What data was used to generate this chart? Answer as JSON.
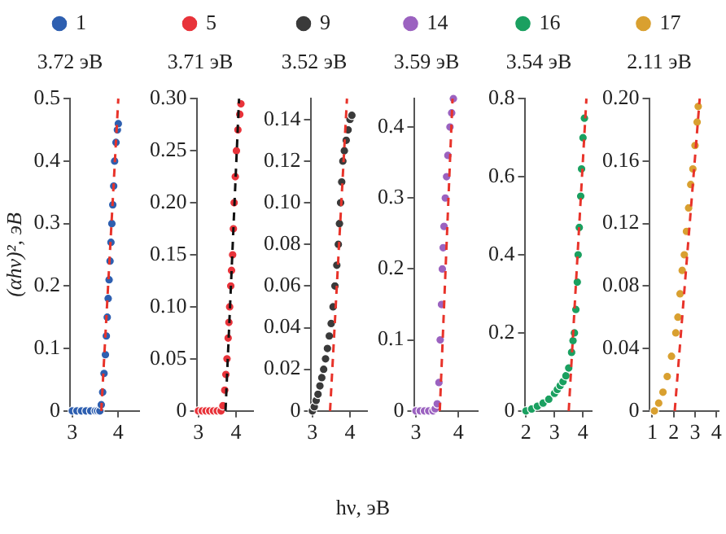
{
  "chart_data": [
    {
      "type": "scatter",
      "ylabel": "(αhν)², эВ",
      "annotations": [
        "3.72 эВ"
      ],
      "legend": "top",
      "marker": "circle",
      "grid": false,
      "xlim": [
        2.95,
        4.45
      ],
      "xticks": [
        3,
        4
      ],
      "ylim": [
        0,
        0.5
      ],
      "yticks": [
        0,
        0.1,
        0.2,
        0.3,
        0.4,
        0.5
      ],
      "series": [
        {
          "name": "1",
          "color": "#2e5fb0",
          "x": [
            3.0,
            3.1,
            3.2,
            3.3,
            3.4,
            3.5,
            3.55,
            3.6,
            3.63,
            3.66,
            3.69,
            3.72,
            3.74,
            3.76,
            3.78,
            3.8,
            3.82,
            3.84,
            3.86,
            3.88,
            3.9,
            3.92,
            3.95,
            3.98,
            4.0
          ],
          "values": [
            0,
            0,
            0,
            0,
            0,
            0,
            0,
            0,
            0.01,
            0.03,
            0.06,
            0.09,
            0.12,
            0.15,
            0.18,
            0.21,
            0.24,
            0.27,
            0.3,
            0.33,
            0.36,
            0.4,
            0.43,
            0.45,
            0.46
          ]
        },
        {
          "type": "line",
          "color": "#e8332a",
          "line_style": "dashed",
          "marker": "none",
          "x": [
            3.63,
            4.0
          ],
          "values": [
            0,
            0.5
          ]
        }
      ]
    },
    {
      "type": "scatter",
      "annotations": [
        "3.71 эВ"
      ],
      "legend": "top",
      "marker": "circle",
      "grid": false,
      "xlim": [
        2.95,
        4.45
      ],
      "xticks": [
        3,
        4
      ],
      "ylim": [
        0,
        0.3
      ],
      "yticks": [
        0,
        0.05,
        {
          "value": 0.1,
          "label": "0.10"
        },
        0.15,
        {
          "value": 0.2,
          "label": "0.20"
        },
        0.25,
        {
          "value": 0.3,
          "label": "0.30"
        }
      ],
      "series": [
        {
          "name": "5",
          "color": "#e8333a",
          "x": [
            3.0,
            3.1,
            3.2,
            3.3,
            3.4,
            3.5,
            3.6,
            3.65,
            3.7,
            3.73,
            3.76,
            3.79,
            3.81,
            3.83,
            3.86,
            3.88,
            3.91,
            3.93,
            3.95,
            3.98,
            4.01,
            4.05,
            4.1,
            4.13
          ],
          "values": [
            0,
            0,
            0,
            0,
            0,
            0,
            0,
            0.005,
            0.02,
            0.035,
            0.05,
            0.07,
            0.085,
            0.1,
            0.12,
            0.135,
            0.15,
            0.175,
            0.2,
            0.225,
            0.25,
            0.27,
            0.285,
            0.295
          ]
        },
        {
          "type": "line",
          "color": "#111111",
          "line_style": "dashed",
          "marker": "none",
          "x": [
            3.72,
            4.08
          ],
          "values": [
            0,
            0.3
          ]
        }
      ]
    },
    {
      "type": "scatter",
      "annotations": [
        "3.52 эВ"
      ],
      "legend": "top",
      "marker": "circle",
      "grid": false,
      "xlim": [
        2.95,
        4.45
      ],
      "xticks": [
        3,
        4
      ],
      "ylim": [
        0,
        0.15
      ],
      "yticks": [
        0,
        0.02,
        0.04,
        0.06,
        0.08,
        {
          "value": 0.1,
          "label": "0.10"
        },
        0.12,
        0.14
      ],
      "series": [
        {
          "name": "9",
          "color": "#3a3a3a",
          "x": [
            3.0,
            3.05,
            3.1,
            3.15,
            3.2,
            3.25,
            3.3,
            3.35,
            3.4,
            3.45,
            3.5,
            3.55,
            3.6,
            3.65,
            3.69,
            3.72,
            3.75,
            3.78,
            3.81,
            3.85,
            3.9,
            3.95,
            4.0,
            4.05
          ],
          "values": [
            0,
            0.002,
            0.005,
            0.008,
            0.012,
            0.016,
            0.02,
            0.025,
            0.03,
            0.036,
            0.042,
            0.05,
            0.06,
            0.07,
            0.08,
            0.09,
            0.1,
            0.11,
            0.12,
            0.125,
            0.13,
            0.135,
            0.14,
            0.142
          ]
        },
        {
          "type": "line",
          "color": "#e8332a",
          "line_style": "dashed",
          "marker": "none",
          "x": [
            3.47,
            3.92
          ],
          "values": [
            0,
            0.15
          ]
        }
      ]
    },
    {
      "type": "scatter",
      "xlabel": "hν, эВ",
      "annotations": [
        "3.59 эВ"
      ],
      "legend": "top",
      "marker": "circle",
      "grid": false,
      "xlim": [
        2.95,
        4.45
      ],
      "xticks": [
        3,
        4
      ],
      "ylim": [
        0,
        0.44
      ],
      "yticks": [
        0,
        0.1,
        0.2,
        0.3,
        0.4
      ],
      "series": [
        {
          "name": "14",
          "color": "#9b62c0",
          "x": [
            3.0,
            3.1,
            3.2,
            3.3,
            3.4,
            3.45,
            3.5,
            3.54,
            3.57,
            3.6,
            3.62,
            3.64,
            3.66,
            3.69,
            3.72,
            3.75,
            3.8,
            3.84,
            3.88
          ],
          "values": [
            0,
            0,
            0,
            0,
            0,
            0.003,
            0.01,
            0.04,
            0.1,
            0.15,
            0.2,
            0.23,
            0.26,
            0.3,
            0.33,
            0.36,
            0.4,
            0.42,
            0.44
          ]
        },
        {
          "type": "line",
          "color": "#e8332a",
          "line_style": "dashed",
          "marker": "none",
          "x": [
            3.56,
            3.86
          ],
          "values": [
            0,
            0.44
          ]
        }
      ]
    },
    {
      "type": "scatter",
      "annotations": [
        "3.54 эВ"
      ],
      "legend": "top",
      "marker": "circle",
      "grid": false,
      "xlim": [
        1.95,
        4.3
      ],
      "xticks": [
        2,
        3,
        4
      ],
      "ylim": [
        0,
        0.8
      ],
      "yticks": [
        0,
        0.2,
        0.4,
        0.6,
        0.8
      ],
      "series": [
        {
          "name": "16",
          "color": "#1aa060",
          "x": [
            2.0,
            2.2,
            2.4,
            2.6,
            2.8,
            3.0,
            3.1,
            3.2,
            3.3,
            3.4,
            3.5,
            3.6,
            3.65,
            3.7,
            3.75,
            3.8,
            3.83,
            3.87,
            3.92,
            3.95,
            4.0,
            4.05
          ],
          "values": [
            0,
            0.005,
            0.012,
            0.02,
            0.03,
            0.045,
            0.055,
            0.065,
            0.075,
            0.09,
            0.11,
            0.15,
            0.18,
            0.2,
            0.26,
            0.33,
            0.4,
            0.47,
            0.55,
            0.62,
            0.7,
            0.75
          ]
        },
        {
          "type": "line",
          "color": "#e8332a",
          "line_style": "dashed",
          "marker": "none",
          "x": [
            3.5,
            4.12
          ],
          "values": [
            0,
            0.8
          ]
        }
      ]
    },
    {
      "type": "scatter",
      "annotations": [
        "2.11 эВ"
      ],
      "legend": "top",
      "marker": "circle",
      "grid": false,
      "xlim": [
        0.85,
        4.1
      ],
      "xticks": [
        1,
        2,
        3,
        4
      ],
      "ylim": [
        0,
        0.2
      ],
      "yticks": [
        0,
        0.04,
        0.08,
        0.12,
        0.16,
        {
          "value": 0.2,
          "label": "0.20"
        }
      ],
      "series": [
        {
          "name": "17",
          "color": "#d9a030",
          "x": [
            1.1,
            1.3,
            1.5,
            1.7,
            1.9,
            2.1,
            2.2,
            2.3,
            2.4,
            2.5,
            2.6,
            2.7,
            2.8,
            2.9,
            3.0,
            3.1,
            3.15
          ],
          "values": [
            0,
            0.005,
            0.012,
            0.022,
            0.035,
            0.05,
            0.06,
            0.075,
            0.09,
            0.1,
            0.115,
            0.13,
            0.145,
            0.155,
            0.17,
            0.185,
            0.195
          ]
        },
        {
          "type": "line",
          "color": "#e8332a",
          "line_style": "dashed",
          "marker": "none",
          "x": [
            2.05,
            3.22
          ],
          "values": [
            0,
            0.2
          ]
        }
      ]
    }
  ]
}
